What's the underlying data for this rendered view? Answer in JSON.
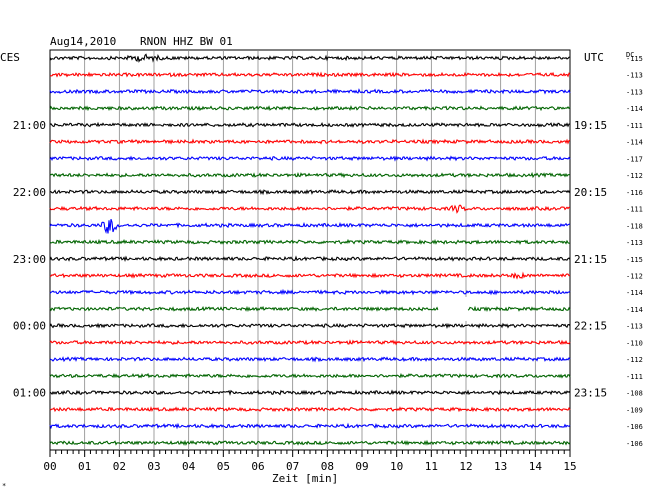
{
  "header": {
    "date": "Aug14,2010",
    "station": "RNON HHZ BW 01",
    "left_timezone": "CES",
    "right_timezone": "UTC",
    "dc_label": "DC"
  },
  "footer": {
    "xlabel": "Zeit [min]",
    "corner_mark": "*"
  },
  "chart_data": {
    "type": "line",
    "title": "Aug14,2010   RNON HHZ BW 01",
    "xlabel": "Zeit [min]",
    "xlim": [
      0,
      15
    ],
    "x_ticks": [
      "00",
      "01",
      "02",
      "03",
      "04",
      "05",
      "06",
      "07",
      "08",
      "09",
      "10",
      "11",
      "12",
      "13",
      "14",
      "15"
    ],
    "trace_interval_min": 15,
    "trace_count": 24,
    "color_cycle": [
      "#000000",
      "#ff0000",
      "#0000ff",
      "#006400"
    ],
    "left_hour_labels": [
      {
        "trace": 4,
        "label": "21:00"
      },
      {
        "trace": 8,
        "label": "22:00"
      },
      {
        "trace": 12,
        "label": "23:00"
      },
      {
        "trace": 16,
        "label": "00:00"
      },
      {
        "trace": 20,
        "label": "01:00"
      }
    ],
    "right_hour_labels": [
      {
        "trace": 4,
        "label": "19:15"
      },
      {
        "trace": 8,
        "label": "20:15"
      },
      {
        "trace": 12,
        "label": "21:15"
      },
      {
        "trace": 16,
        "label": "22:15"
      },
      {
        "trace": 20,
        "label": "23:15"
      }
    ],
    "dc_offsets": [
      "-115",
      "-113",
      "-113",
      "-114",
      "-111",
      "-114",
      "-117",
      "-112",
      "-116",
      "-111",
      "-118",
      "-113",
      "-115",
      "-112",
      "-114",
      "-114",
      "-113",
      "-110",
      "-112",
      "-111",
      "-108",
      "-109",
      "-106",
      "-106"
    ],
    "events": [
      {
        "trace": 0,
        "x_min": 2.1,
        "width_min": 1.2,
        "amplitude": 2.5
      },
      {
        "trace": 9,
        "x_min": 11.5,
        "width_min": 0.5,
        "amplitude": 3.0
      },
      {
        "trace": 10,
        "x_min": 1.45,
        "width_min": 0.55,
        "amplitude": 9.0
      },
      {
        "trace": 13,
        "x_min": 13.3,
        "width_min": 0.4,
        "amplitude": 3.0
      }
    ],
    "gaps": [
      {
        "trace": 15,
        "from_min": 11.2,
        "to_min": 12.05
      }
    ],
    "grid": true
  }
}
